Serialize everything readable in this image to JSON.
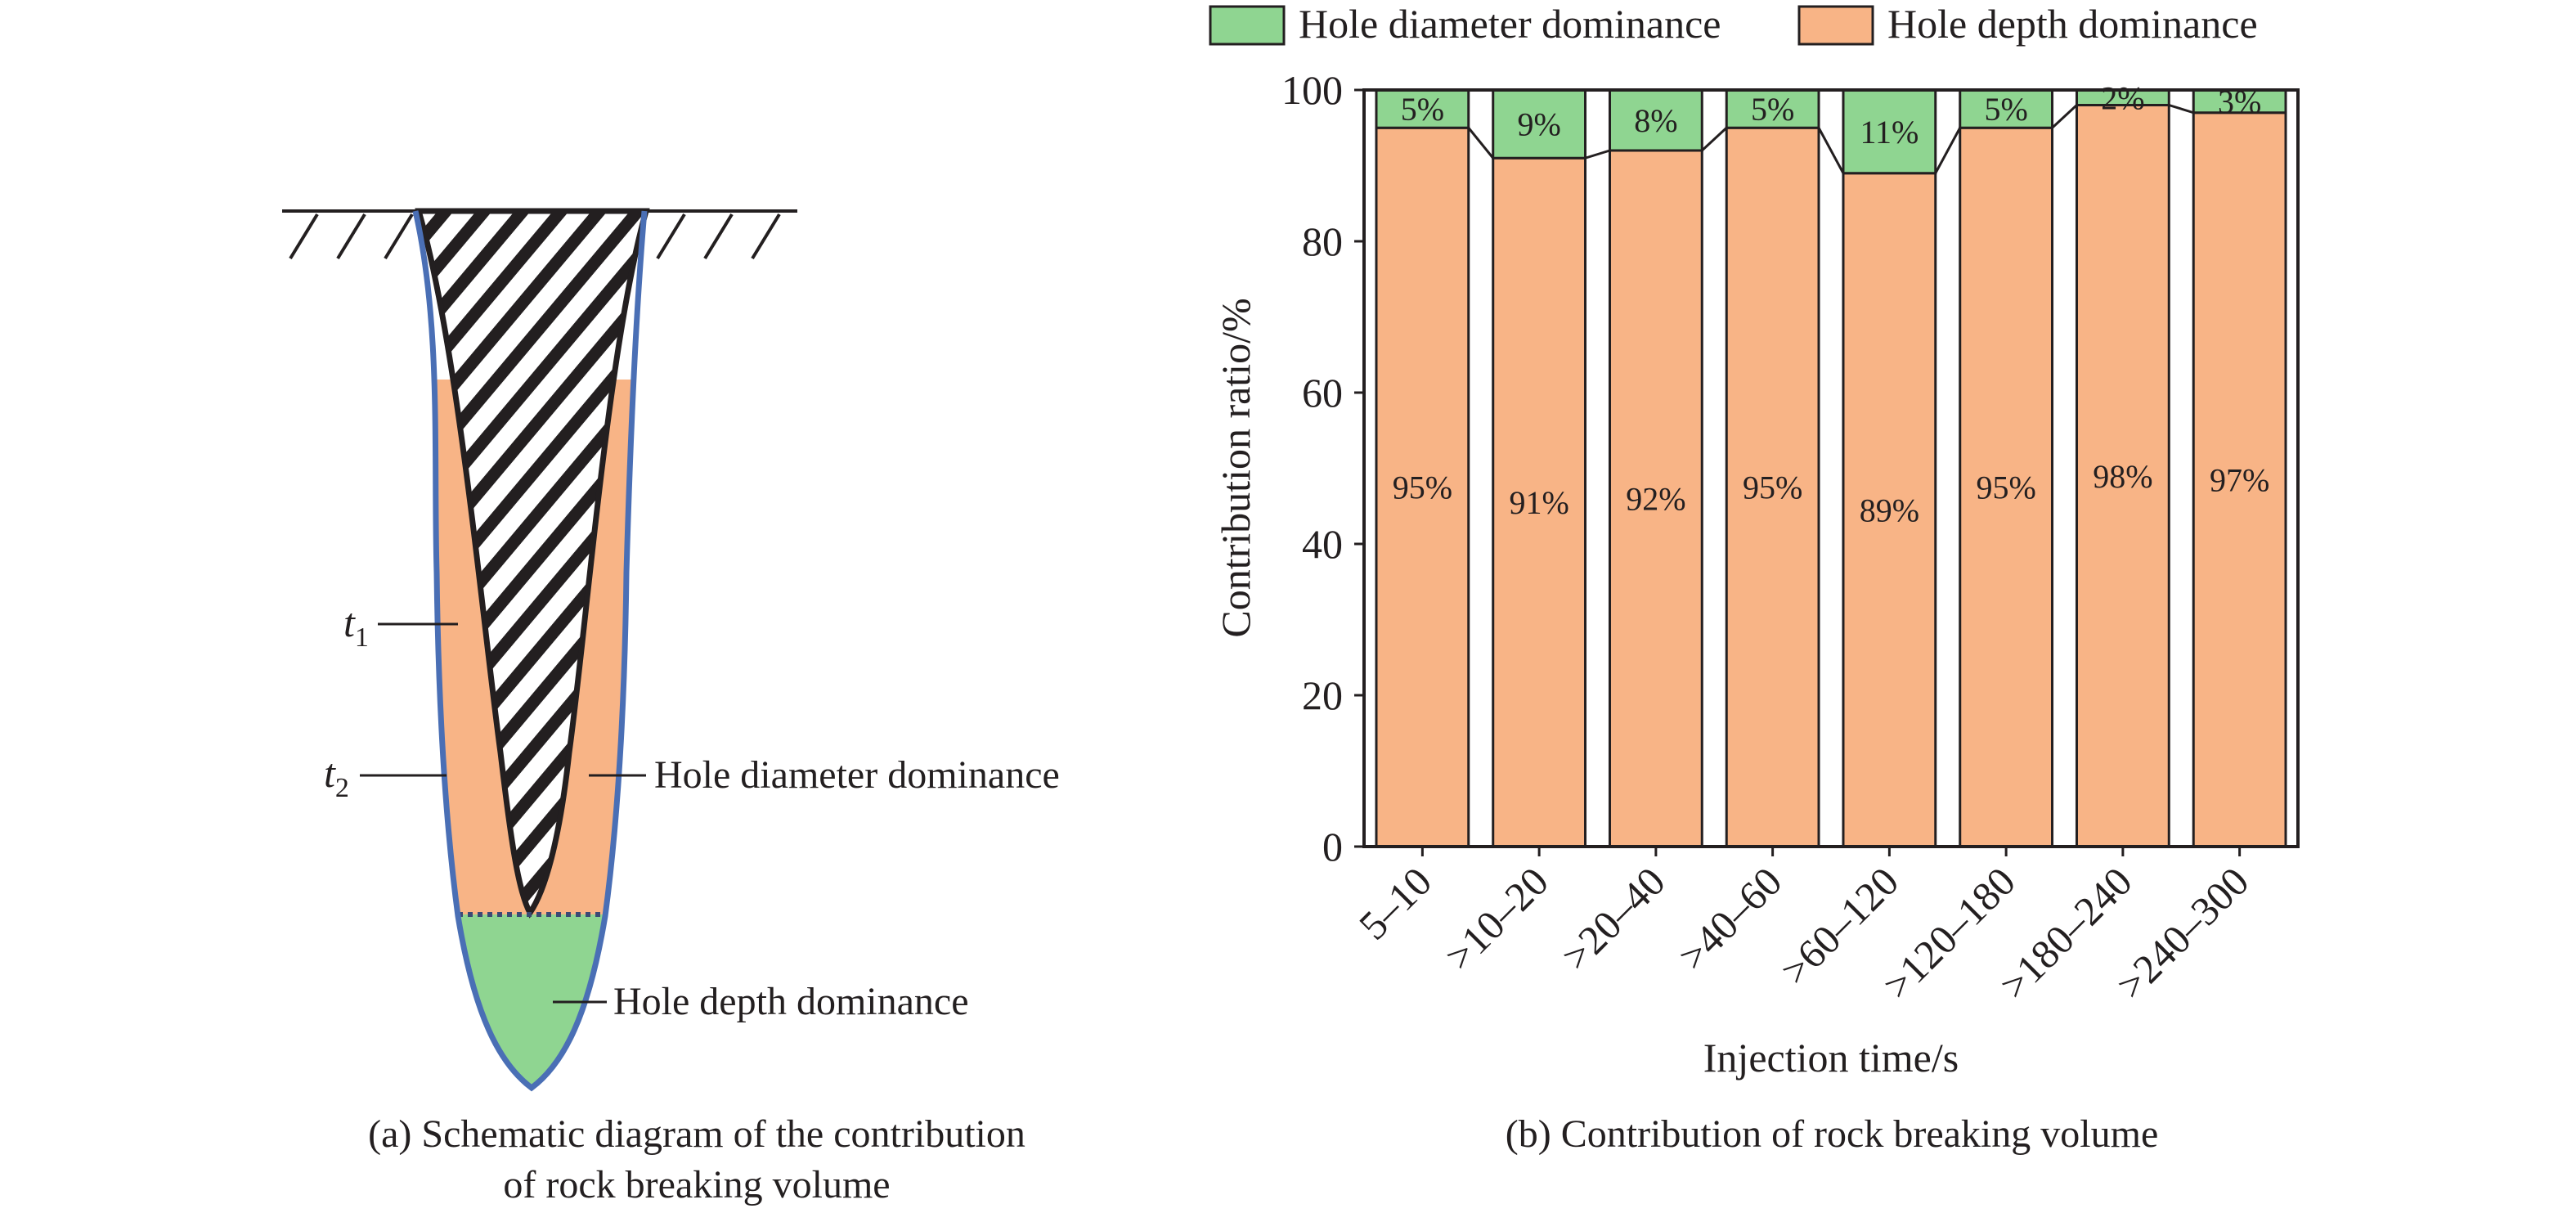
{
  "panel_a": {
    "caption_line1": "(a) Schematic diagram of the contribution",
    "caption_line2": "of rock breaking volume",
    "label_t1": "t",
    "label_t1_sub": "1",
    "label_t2": "t",
    "label_t2_sub": "2",
    "label_diameter": "Hole diameter dominance",
    "label_depth": "Hole depth dominance",
    "colors": {
      "depth_fill": "#f8b486",
      "diameter_fill": "#8fd591",
      "outline": "#4a6fb5",
      "hatch": "#231f20"
    }
  },
  "panel_b": {
    "caption": "(b) Contribution of rock breaking volume"
  },
  "chart_data": {
    "type": "bar",
    "stacked": true,
    "xlabel": "Injection time/s",
    "ylabel": "Contribution ratio/%",
    "ylim": [
      0,
      100
    ],
    "yticks": [
      "0",
      "20",
      "40",
      "60",
      "80",
      "100"
    ],
    "categories": [
      "5–10",
      ">10–20",
      ">20–40",
      ">40–60",
      ">60–120",
      ">120–180",
      ">180–240",
      ">240–300"
    ],
    "series": [
      {
        "name": "Hole depth dominance",
        "color": "#f8b486",
        "values": [
          95,
          91,
          92,
          95,
          89,
          95,
          98,
          97
        ],
        "labels": [
          "95%",
          "91%",
          "92%",
          "95%",
          "89%",
          "95%",
          "98%",
          "97%"
        ]
      },
      {
        "name": "Hole diameter dominance",
        "color": "#8fd591",
        "values": [
          5,
          9,
          8,
          5,
          11,
          5,
          2,
          3
        ],
        "labels": [
          "5%",
          "9%",
          "8%",
          "5%",
          "11%",
          "5%",
          "2%",
          "3%"
        ]
      }
    ],
    "legend_order": [
      "Hole diameter dominance",
      "Hole depth dominance"
    ],
    "legend_position": "top",
    "grid": false
  }
}
